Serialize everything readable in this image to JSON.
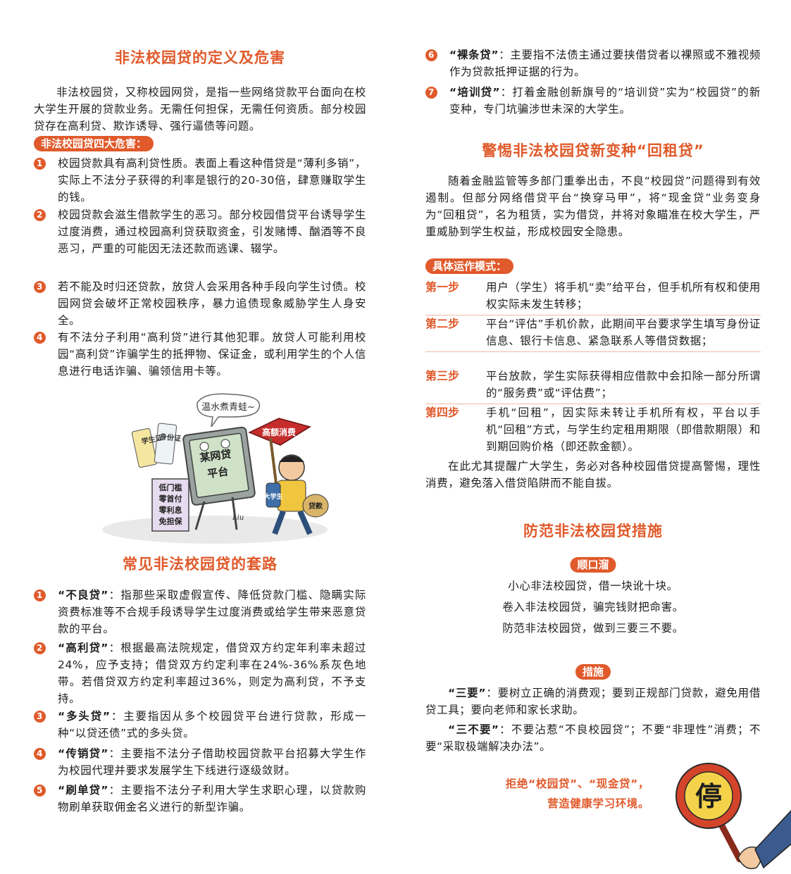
{
  "colors": {
    "accent": "#e05a2b",
    "text": "#1e1e1e"
  },
  "left": {
    "def_title": "非法校园贷的定义及危害",
    "def_para": "非法校园贷，又称校园网贷，是指一些网络贷款平台面向在校大学生开展的贷款业务。无需任何担保，无需任何资质。部分校园贷存在高利贷、欺诈诱导、强行逼债等问题。",
    "harms_pill": "非法校园贷四大危害：",
    "harms": [
      {
        "num": "1",
        "text": "校园贷款具有高利贷性质。表面上看这种借贷是“薄利多销”，实际上不法分子获得的利率是银行的20-30倍，肆意赚取学生的钱。"
      },
      {
        "num": "2",
        "text": "校园贷款会滋生借款学生的恶习。部分校园借贷平台诱导学生过度消费，通过校园高利贷获取资金，引发赌博、酗酒等不良恶习，严重的可能因无法还款而逃课、辍学。"
      },
      {
        "num": "3",
        "text": "若不能及时归还贷款，放贷人会采用各种手段向学生讨债。校园网贷会破坏正常校园秩序，暴力追债现象威胁学生人身安全。"
      },
      {
        "num": "4",
        "text": "有不法分子利用“高利贷”进行其他犯罪。放贷人可能利用校园“高利贷”诈骗学生的抵押物、保证金，或利用学生的个人信息进行电话诈骗、骗领信用卡等。"
      }
    ],
    "cartoon": {
      "bubble": "温水煮青蛙~",
      "sign": "高额消费",
      "screen": "某网贷平台",
      "board": [
        "低门槛",
        "零首付",
        "零利息",
        "免担保"
      ],
      "card1": "学生证",
      "card2": "身份证",
      "backpack": "大学生",
      "bag": "贷款",
      "signature": "Liu"
    },
    "tricks_title": "常见非法校园贷的套路",
    "tricks": [
      {
        "num": "1",
        "term": "“不良贷”",
        "text": "：指那些采取虚假宣传、降低贷款门槛、隐瞒实际资费标准等不合规手段诱导学生过度消费或给学生带来恶意贷款的平台。"
      },
      {
        "num": "2",
        "term": "“高利贷”",
        "text": "：根据最高法院规定，借贷双方约定年利率未超过24%，应予支持；借贷双方约定利率在24%-36%系灰色地带。若借贷双方约定利率超过36%，则定为高利贷，不予支持。"
      },
      {
        "num": "3",
        "term": "“多头贷”",
        "text": "：主要指因从多个校园贷平台进行贷款，形成一种“以贷还债”式的多头贷。"
      },
      {
        "num": "4",
        "term": "“传销贷”",
        "text": "：主要指不法分子借助校园贷款平台招募大学生作为校园代理并要求发展学生下线进行逐级敛财。"
      },
      {
        "num": "5",
        "term": "“刷单贷”",
        "text": "：主要指不法分子利用大学生求职心理，以贷款购物刷单获取佣金名义进行的新型诈骗。"
      }
    ]
  },
  "right": {
    "tricks_cont": [
      {
        "num": "6",
        "term": "“裸条贷”",
        "text": "：主要指不法债主通过要挟借贷者以裸照或不雅视频作为贷款抵押证据的行为。"
      },
      {
        "num": "7",
        "term": "“培训贷”",
        "text": "：打着金融创新旗号的“培训贷”实为“校园贷”的新变种，专门坑骗涉世未深的大学生。"
      }
    ],
    "rent_title": "警惕非法校园贷新变种“回租贷”",
    "rent_para": "随着金融监管等多部门重拳出击，不良“校园贷”问题得到有效遏制。但部分网络借贷平台“换穿马甲”，将“现金贷”业务变身为“回租贷”，名为租赁，实为借贷，并将对象瞄准在校大学生，严重威胁到学生权益，形成校园安全隐患。",
    "mode_pill": "具体运作模式：",
    "steps": [
      {
        "label": "第一步",
        "text": "用户（学生）将手机“卖”给平台，但手机所有权和使用权实际未发生转移；"
      },
      {
        "label": "第二步",
        "text": "平台“评估”手机价款，此期间平台要求学生填写身份证信息、银行卡信息、紧急联系人等借贷数据；"
      },
      {
        "label": "第三步",
        "text": "平台放款，学生实际获得相应借款中会扣除一部分所谓的“服务费”或“评估费”；"
      },
      {
        "label": "第四步",
        "text": "手机“回租”，因实际未转让手机所有权，平台以手机“回租”方式，与学生约定租用期限（即借款期限）和到期回购价格（即还款金额）。"
      }
    ],
    "reminder": "在此尤其提醒广大学生，务必对各种校园借贷提高警惕，理性消费，避免落入借贷陷阱而不能自拔。",
    "prevent_title": "防范非法校园贷措施",
    "rhyme_pill": "顺口溜",
    "rhymes": [
      "小心非法校园贷，借一块讹十块。",
      "卷入非法校园贷，骗完钱财把命害。",
      "防范非法校园贷，做到三要三不要。"
    ],
    "measure_pill": "措施",
    "measures": [
      {
        "term": "“三要”",
        "text": "：要树立正确的消费观；要到正规部门贷款，避免用借贷工具；要向老师和家长求助。"
      },
      {
        "term": "“三不要”",
        "text": "：不要沾惹“不良校园贷”；不要“非理性”消费；不要“采取极端解决办法”。"
      }
    ],
    "slogan": [
      "拒绝“校园贷”、“现金贷”，",
      "营造健康学习环境。"
    ],
    "stop_sign": "停"
  }
}
